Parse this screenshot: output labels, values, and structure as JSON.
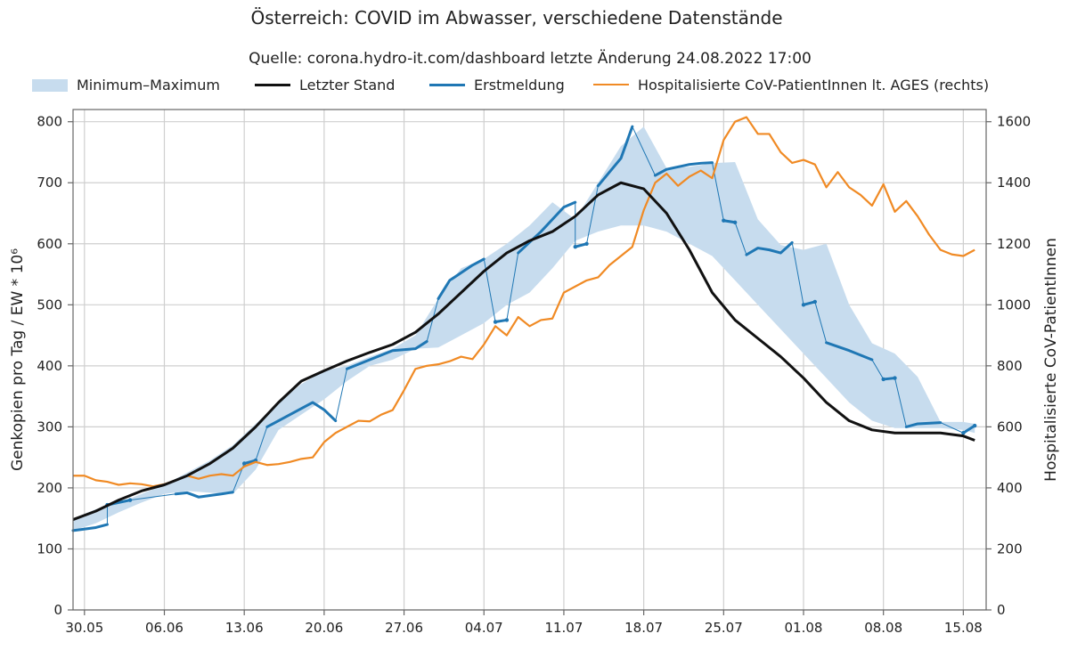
{
  "header": {
    "title": "Österreich: COVID im Abwasser, verschiedene Datenstände",
    "subtitle": "Quelle: corona.hydro-it.com/dashboard letzte Änderung 24.08.2022 17:00"
  },
  "colors": {
    "band": "#c7dcee",
    "last": "#111111",
    "first": "#1f77b4",
    "hosp": "#f08a24",
    "grid": "#cfcfcf",
    "axis": "#666666"
  },
  "chart_data": {
    "type": "line",
    "title": "Österreich: COVID im Abwasser, verschiedene Datenstände",
    "subtitle": "Quelle: corona.hydro-it.com/dashboard letzte Änderung 24.08.2022 17:00",
    "ylabel": "Genkopien pro Tag / EW * 10⁶",
    "y2label": "Hospitalisierte CoV-PatientInnen",
    "ylim": [
      0,
      820
    ],
    "y2lim": [
      0,
      1640
    ],
    "xlim": [
      "2022-05-29",
      "2022-08-17"
    ],
    "x_ticks": [
      {
        "date": "2022-05-30",
        "label": "30.05"
      },
      {
        "date": "2022-06-06",
        "label": "06.06"
      },
      {
        "date": "2022-06-13",
        "label": "13.06"
      },
      {
        "date": "2022-06-20",
        "label": "20.06"
      },
      {
        "date": "2022-06-27",
        "label": "27.06"
      },
      {
        "date": "2022-07-04",
        "label": "04.07"
      },
      {
        "date": "2022-07-11",
        "label": "11.07"
      },
      {
        "date": "2022-07-18",
        "label": "18.07"
      },
      {
        "date": "2022-07-25",
        "label": "25.07"
      },
      {
        "date": "2022-08-01",
        "label": "01.08"
      },
      {
        "date": "2022-08-08",
        "label": "08.08"
      },
      {
        "date": "2022-08-15",
        "label": "15.08"
      }
    ],
    "y_ticks": [
      0,
      100,
      200,
      300,
      400,
      500,
      600,
      700,
      800
    ],
    "y2_ticks": [
      0,
      200,
      400,
      600,
      800,
      1000,
      1200,
      1400,
      1600
    ],
    "grid": true,
    "legend": "top",
    "series": [
      {
        "name": "Minimum–Maximum",
        "kind": "band",
        "x": [
          "2022-05-29",
          "2022-05-31",
          "2022-06-02",
          "2022-06-04",
          "2022-06-06",
          "2022-06-08",
          "2022-06-10",
          "2022-06-12",
          "2022-06-14",
          "2022-06-16",
          "2022-06-18",
          "2022-06-20",
          "2022-06-22",
          "2022-06-24",
          "2022-06-26",
          "2022-06-28",
          "2022-06-30",
          "2022-07-02",
          "2022-07-04",
          "2022-07-06",
          "2022-07-08",
          "2022-07-10",
          "2022-07-12",
          "2022-07-14",
          "2022-07-16",
          "2022-07-18",
          "2022-07-20",
          "2022-07-22",
          "2022-07-24",
          "2022-07-26",
          "2022-07-28",
          "2022-07-30",
          "2022-08-01",
          "2022-08-03",
          "2022-08-05",
          "2022-08-07",
          "2022-08-09",
          "2022-08-11",
          "2022-08-13",
          "2022-08-15",
          "2022-08-16"
        ],
        "low": [
          130,
          142,
          160,
          176,
          190,
          195,
          192,
          190,
          230,
          295,
          320,
          345,
          375,
          400,
          410,
          428,
          430,
          450,
          470,
          500,
          520,
          560,
          605,
          620,
          630,
          630,
          620,
          600,
          580,
          540,
          500,
          460,
          420,
          380,
          340,
          310,
          298,
          298,
          298,
          295,
          290
        ],
        "high": [
          150,
          165,
          175,
          190,
          205,
          225,
          245,
          270,
          305,
          340,
          370,
          392,
          400,
          415,
          428,
          450,
          510,
          560,
          575,
          600,
          630,
          668,
          640,
          700,
          760,
          792,
          724,
          726,
          732,
          734,
          640,
          598,
          590,
          600,
          500,
          437,
          420,
          382,
          308,
          308,
          305
        ]
      },
      {
        "name": "Letzter Stand",
        "kind": "line",
        "x": [
          "2022-05-29",
          "2022-05-31",
          "2022-06-02",
          "2022-06-04",
          "2022-06-06",
          "2022-06-08",
          "2022-06-10",
          "2022-06-12",
          "2022-06-14",
          "2022-06-16",
          "2022-06-18",
          "2022-06-20",
          "2022-06-22",
          "2022-06-24",
          "2022-06-26",
          "2022-06-28",
          "2022-06-30",
          "2022-07-02",
          "2022-07-04",
          "2022-07-06",
          "2022-07-08",
          "2022-07-10",
          "2022-07-12",
          "2022-07-14",
          "2022-07-16",
          "2022-07-18",
          "2022-07-20",
          "2022-07-22",
          "2022-07-24",
          "2022-07-26",
          "2022-07-28",
          "2022-07-30",
          "2022-08-01",
          "2022-08-03",
          "2022-08-05",
          "2022-08-07",
          "2022-08-09",
          "2022-08-11",
          "2022-08-13",
          "2022-08-15",
          "2022-08-16"
        ],
        "values": [
          148,
          162,
          180,
          195,
          205,
          220,
          240,
          265,
          300,
          340,
          375,
          392,
          408,
          422,
          435,
          455,
          485,
          520,
          555,
          585,
          605,
          620,
          645,
          680,
          700,
          690,
          650,
          590,
          520,
          475,
          445,
          415,
          380,
          340,
          310,
          295,
          290,
          290,
          290,
          285,
          278
        ]
      },
      {
        "name": "Erstmeldung",
        "kind": "dashed-segments",
        "segments": [
          {
            "x": [
              "2022-05-29",
              "2022-05-31",
              "2022-06-01"
            ],
            "values": [
              130,
              135,
              140
            ]
          },
          {
            "x": [
              "2022-06-01",
              "2022-06-03"
            ],
            "values": [
              172,
              180
            ]
          },
          {
            "x": [
              "2022-06-07",
              "2022-06-08",
              "2022-06-09",
              "2022-06-11",
              "2022-06-12"
            ],
            "values": [
              190,
              192,
              185,
              190,
              193
            ]
          },
          {
            "x": [
              "2022-06-13",
              "2022-06-14"
            ],
            "values": [
              240,
              245
            ]
          },
          {
            "x": [
              "2022-06-15",
              "2022-06-17",
              "2022-06-18",
              "2022-06-19",
              "2022-06-20",
              "2022-06-21"
            ],
            "values": [
              300,
              320,
              330,
              340,
              328,
              310
            ]
          },
          {
            "x": [
              "2022-06-22",
              "2022-06-24",
              "2022-06-26",
              "2022-06-28",
              "2022-06-29"
            ],
            "values": [
              395,
              410,
              425,
              428,
              440
            ]
          },
          {
            "x": [
              "2022-06-30",
              "2022-07-01",
              "2022-07-03",
              "2022-07-04"
            ],
            "values": [
              510,
              540,
              565,
              575
            ]
          },
          {
            "x": [
              "2022-07-05",
              "2022-07-06"
            ],
            "values": [
              472,
              475
            ]
          },
          {
            "x": [
              "2022-07-07",
              "2022-07-09",
              "2022-07-11",
              "2022-07-12"
            ],
            "values": [
              585,
              620,
              660,
              668
            ]
          },
          {
            "x": [
              "2022-07-12",
              "2022-07-13"
            ],
            "values": [
              595,
              600
            ]
          },
          {
            "x": [
              "2022-07-14",
              "2022-07-16",
              "2022-07-17"
            ],
            "values": [
              695,
              740,
              792
            ]
          },
          {
            "x": [
              "2022-07-19",
              "2022-07-20",
              "2022-07-22",
              "2022-07-23",
              "2022-07-24"
            ],
            "values": [
              712,
              722,
              730,
              732,
              733
            ]
          },
          {
            "x": [
              "2022-07-25",
              "2022-07-26"
            ],
            "values": [
              638,
              635
            ]
          },
          {
            "x": [
              "2022-07-27",
              "2022-07-28",
              "2022-07-29",
              "2022-07-30",
              "2022-07-31"
            ],
            "values": [
              582,
              593,
              590,
              585,
              602
            ]
          },
          {
            "x": [
              "2022-08-01",
              "2022-08-02"
            ],
            "values": [
              500,
              505
            ]
          },
          {
            "x": [
              "2022-08-03",
              "2022-08-05",
              "2022-08-07"
            ],
            "values": [
              438,
              425,
              410
            ]
          },
          {
            "x": [
              "2022-08-08",
              "2022-08-09"
            ],
            "values": [
              378,
              380
            ]
          },
          {
            "x": [
              "2022-08-10",
              "2022-08-11",
              "2022-08-13"
            ],
            "values": [
              300,
              305,
              307
            ]
          },
          {
            "x": [
              "2022-08-15",
              "2022-08-16"
            ],
            "values": [
              290,
              302
            ]
          }
        ]
      },
      {
        "name": "Hospitalisierte CoV-PatientInnen lt. AGES (rechts)",
        "kind": "line",
        "axis": "right",
        "x": [
          "2022-05-29",
          "2022-05-30",
          "2022-05-31",
          "2022-06-01",
          "2022-06-02",
          "2022-06-03",
          "2022-06-04",
          "2022-06-05",
          "2022-06-06",
          "2022-06-07",
          "2022-06-08",
          "2022-06-09",
          "2022-06-10",
          "2022-06-11",
          "2022-06-12",
          "2022-06-13",
          "2022-06-14",
          "2022-06-15",
          "2022-06-16",
          "2022-06-17",
          "2022-06-18",
          "2022-06-19",
          "2022-06-20",
          "2022-06-21",
          "2022-06-22",
          "2022-06-23",
          "2022-06-24",
          "2022-06-25",
          "2022-06-26",
          "2022-06-27",
          "2022-06-28",
          "2022-06-29",
          "2022-06-30",
          "2022-07-01",
          "2022-07-02",
          "2022-07-03",
          "2022-07-04",
          "2022-07-05",
          "2022-07-06",
          "2022-07-07",
          "2022-07-08",
          "2022-07-09",
          "2022-07-10",
          "2022-07-11",
          "2022-07-12",
          "2022-07-13",
          "2022-07-14",
          "2022-07-15",
          "2022-07-16",
          "2022-07-17",
          "2022-07-18",
          "2022-07-19",
          "2022-07-20",
          "2022-07-21",
          "2022-07-22",
          "2022-07-23",
          "2022-07-24",
          "2022-07-25",
          "2022-07-26",
          "2022-07-27",
          "2022-07-28",
          "2022-07-29",
          "2022-07-30",
          "2022-07-31",
          "2022-08-01",
          "2022-08-02",
          "2022-08-03",
          "2022-08-04",
          "2022-08-05",
          "2022-08-06",
          "2022-08-07",
          "2022-08-08",
          "2022-08-09",
          "2022-08-10",
          "2022-08-11",
          "2022-08-12",
          "2022-08-13",
          "2022-08-14",
          "2022-08-15",
          "2022-08-16"
        ],
        "values": [
          440,
          440,
          425,
          420,
          410,
          415,
          412,
          405,
          412,
          425,
          440,
          430,
          440,
          445,
          440,
          470,
          485,
          475,
          478,
          485,
          495,
          500,
          550,
          580,
          600,
          620,
          618,
          640,
          655,
          720,
          790,
          800,
          805,
          815,
          830,
          822,
          870,
          930,
          900,
          960,
          930,
          950,
          955,
          1040,
          1060,
          1080,
          1090,
          1130,
          1160,
          1190,
          1310,
          1400,
          1430,
          1390,
          1420,
          1440,
          1415,
          1540,
          1600,
          1615,
          1560,
          1560,
          1500,
          1465,
          1475,
          1460,
          1385,
          1435,
          1385,
          1360,
          1325,
          1395,
          1305,
          1340,
          1290,
          1230,
          1180,
          1165,
          1160,
          1180
        ]
      }
    ]
  },
  "legend": {
    "band_label": "Minimum–Maximum",
    "last_label": "Letzter Stand",
    "first_label": "Erstmeldung",
    "hosp_label": "Hospitalisierte CoV-PatientInnen lt. AGES (rechts)"
  }
}
